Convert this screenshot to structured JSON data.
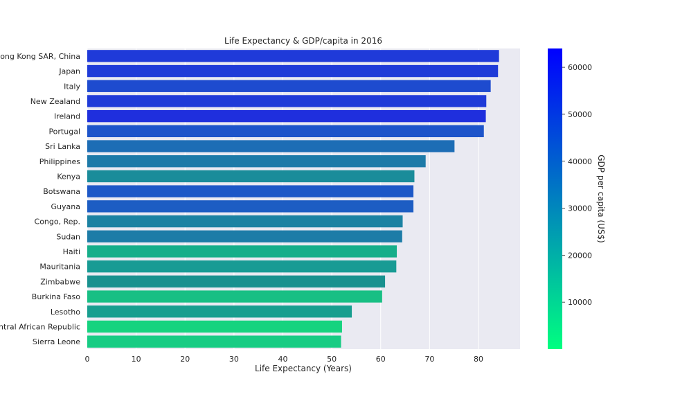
{
  "chart_data": {
    "type": "bar",
    "orientation": "horizontal",
    "title": "Life Expectancy & GDP/capita in 2016",
    "xlabel": "Life Expectancy (Years)",
    "ylabel": "",
    "xlim": [
      0,
      88.5
    ],
    "xticks": [
      0,
      10,
      20,
      30,
      40,
      50,
      60,
      70,
      80
    ],
    "grid": true,
    "categories": [
      "Hong Kong SAR, China",
      "Japan",
      "Italy",
      "New Zealand",
      "Ireland",
      "Portugal",
      "Sri Lanka",
      "Philippines",
      "Kenya",
      "Botswana",
      "Guyana",
      "Congo, Rep.",
      "Sudan",
      "Haiti",
      "Mauritania",
      "Zimbabwe",
      "Burkina Faso",
      "Lesotho",
      "Central African Republic",
      "Sierra Leone"
    ],
    "values": [
      84.2,
      84.0,
      82.5,
      81.6,
      81.5,
      81.1,
      75.1,
      69.2,
      66.9,
      66.7,
      66.7,
      64.5,
      64.4,
      63.3,
      63.2,
      60.9,
      60.3,
      54.1,
      52.1,
      51.9
    ],
    "colors": [
      "#1f3ad9",
      "#1f3bd8",
      "#1e4bcf",
      "#1f3bd8",
      "#1f2fdd",
      "#1d54ca",
      "#1d6db5",
      "#1d7aa8",
      "#1a8c9a",
      "#1d58c7",
      "#1d5dc3",
      "#1c82a2",
      "#1d7ca7",
      "#16ae8a",
      "#189b94",
      "#19918f",
      "#18bf84",
      "#189e8f",
      "#16d37f",
      "#18cc84"
    ],
    "colorbar": {
      "label": "GDP per capita (US$)",
      "ticks": [
        10000,
        20000,
        30000,
        40000,
        50000,
        60000
      ],
      "min": 0,
      "max": 64000,
      "color_low": "#00ff80",
      "color_high": "#0000ff"
    }
  }
}
